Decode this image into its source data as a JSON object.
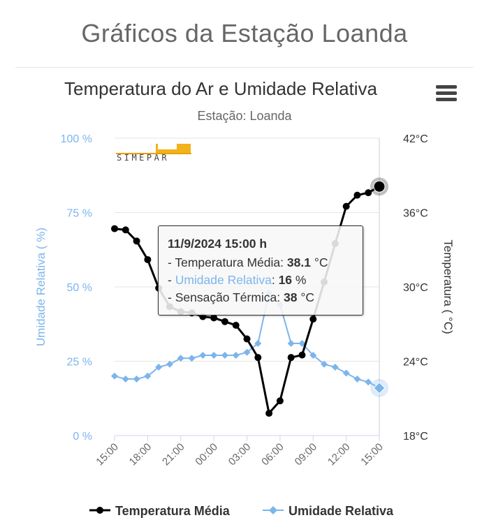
{
  "page": {
    "title": "Gráficos da Estação Loanda"
  },
  "chart_data": {
    "type": "line",
    "title": "Temperatura do Ar e Umidade Relativa",
    "subtitle": "Estação: Loanda",
    "x": [
      "15:00",
      "16:00",
      "17:00",
      "18:00",
      "19:00",
      "20:00",
      "21:00",
      "22:00",
      "23:00",
      "00:00",
      "01:00",
      "02:00",
      "03:00",
      "04:00",
      "05:00",
      "06:00",
      "07:00",
      "08:00",
      "09:00",
      "10:00",
      "11:00",
      "12:00",
      "13:00",
      "14:00",
      "15:00"
    ],
    "xtick_labels": [
      "15:00",
      "18:00",
      "21:00",
      "00:00",
      "03:00",
      "06:00",
      "09:00",
      "12:00",
      "15:00"
    ],
    "y_left": {
      "label": "Umidade Relativa ( %)",
      "ticks": [
        "100 %",
        "75 %",
        "50 %",
        "25 %",
        "0 %"
      ],
      "range": [
        0,
        100
      ],
      "color": "#7cb5ec"
    },
    "y_right": {
      "label": "Temperatura ( °C)",
      "ticks": [
        "42°C",
        "36°C",
        "30°C",
        "24°C",
        "18°C"
      ],
      "range": [
        18,
        42
      ]
    },
    "series": [
      {
        "name": "Temperatura Média",
        "axis": "right",
        "color": "#000000",
        "values": [
          34.7,
          34.6,
          33.7,
          32.2,
          29.9,
          28.4,
          28.0,
          27.9,
          27.6,
          27.5,
          27.2,
          26.9,
          25.8,
          24.3,
          19.8,
          20.8,
          24.3,
          24.5,
          27.4,
          30.4,
          33.5,
          36.5,
          37.4,
          37.6,
          38.1
        ]
      },
      {
        "name": "Umidade Relativa",
        "axis": "left",
        "color": "#7cb5ec",
        "values": [
          20,
          19,
          19,
          20,
          23,
          24,
          26,
          26,
          27,
          27,
          27,
          27,
          28,
          31,
          48,
          44,
          31,
          31,
          27,
          24,
          23,
          21,
          19,
          18,
          16
        ]
      }
    ],
    "logo_text": "SIMEPAR",
    "tooltip": {
      "header": "11/9/2024 15:00 h",
      "rows": [
        {
          "prefix": "- ",
          "name": "Temperatura Média",
          "value": "38.1",
          "unit": " °C"
        },
        {
          "prefix": "- ",
          "name": "Umidade Relativa",
          "value": "16",
          "unit": " %"
        },
        {
          "prefix": "- ",
          "name": "Sensação Térmica",
          "value": "38",
          "unit": " °C"
        }
      ]
    }
  }
}
